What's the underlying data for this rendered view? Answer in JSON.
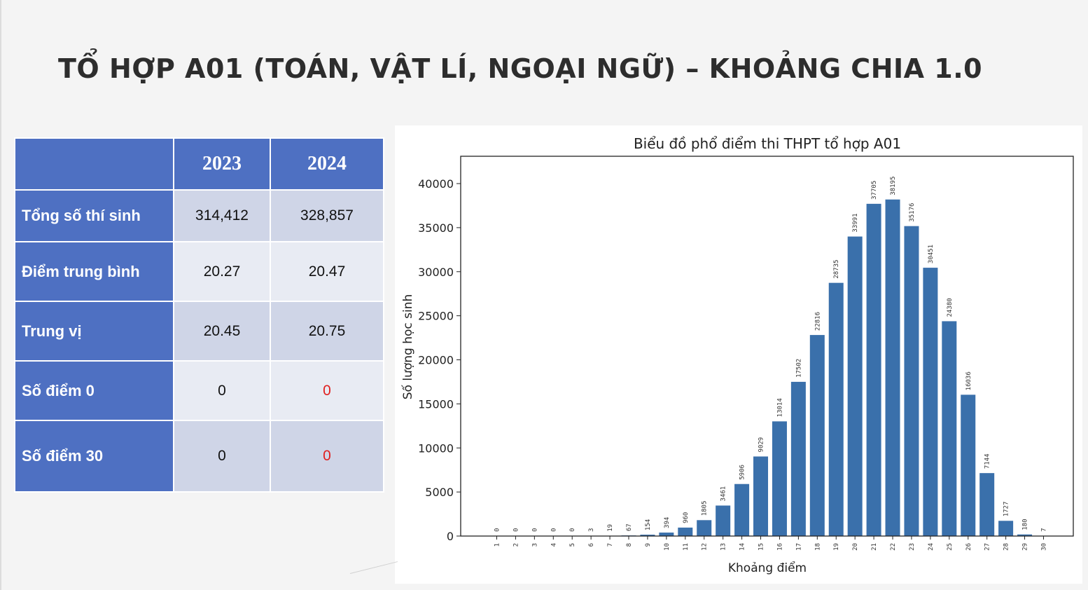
{
  "slide": {
    "title": "TỔ HỢP A01 (TOÁN, VẬT LÍ, NGOẠI NGỮ) – KHOẢNG CHIA 1.0"
  },
  "table": {
    "corner": "",
    "columns": [
      "2023",
      "2024"
    ],
    "rows": [
      {
        "label": "Tổng số thí sinh",
        "values": [
          "314,412",
          "328,857"
        ]
      },
      {
        "label": "Điểm trung bình",
        "values": [
          "20.27",
          "20.47"
        ]
      },
      {
        "label": "Trung vị",
        "values": [
          "20.45",
          "20.75"
        ]
      },
      {
        "label": "Số điểm 0",
        "values": [
          "0",
          "0"
        ]
      },
      {
        "label": "Số điểm 30",
        "values": [
          "0",
          "0"
        ]
      }
    ],
    "header_color": "#4e70c2",
    "highlight_color": "#e02020"
  },
  "chart_data": {
    "type": "bar",
    "title": "Biểu đồ phổ điểm thi THPT tổ hợp A01",
    "xlabel": "Khoảng điểm",
    "ylabel": "Số lượng học sinh",
    "categories": [
      "1",
      "2",
      "3",
      "4",
      "5",
      "6",
      "7",
      "8",
      "9",
      "10",
      "11",
      "12",
      "13",
      "14",
      "15",
      "16",
      "17",
      "18",
      "19",
      "20",
      "21",
      "22",
      "23",
      "24",
      "25",
      "26",
      "27",
      "28",
      "29",
      "30"
    ],
    "values": [
      0,
      0,
      0,
      0,
      0,
      3,
      19,
      67,
      154,
      394,
      960,
      1805,
      3461,
      5906,
      9029,
      13014,
      17502,
      22816,
      28735,
      33991,
      37705,
      38195,
      35176,
      30451,
      24380,
      16036,
      7144,
      1727,
      180,
      7
    ],
    "ylim": [
      0,
      43000
    ],
    "yticks": [
      0,
      5000,
      10000,
      15000,
      20000,
      25000,
      30000,
      35000,
      40000
    ],
    "grid": false,
    "bar_color": "#3a70ab",
    "data_labels": true
  }
}
